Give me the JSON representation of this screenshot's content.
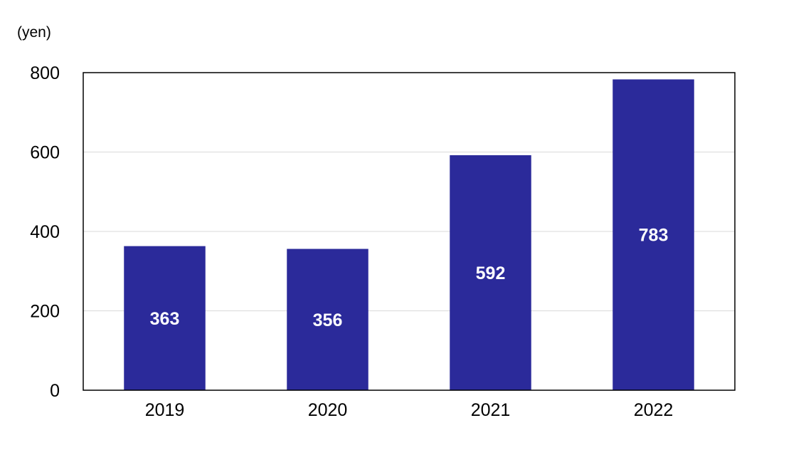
{
  "chart_data": {
    "type": "bar",
    "title": "",
    "xlabel": "",
    "ylabel": "(yen)",
    "categories": [
      "2019",
      "2020",
      "2021",
      "2022"
    ],
    "values": [
      363,
      356,
      592,
      783
    ],
    "data_labels": [
      "363",
      "356",
      "592",
      "783"
    ],
    "ylim": [
      0,
      800
    ],
    "yticks": [
      0,
      200,
      400,
      600,
      800
    ],
    "ytick_labels": [
      "0",
      "200",
      "400",
      "600",
      "800"
    ],
    "grid": true,
    "legend": "none",
    "bar_color": "#2b2a9a",
    "label_color": "#ffffff",
    "grid_color": "#d9d9d9"
  }
}
